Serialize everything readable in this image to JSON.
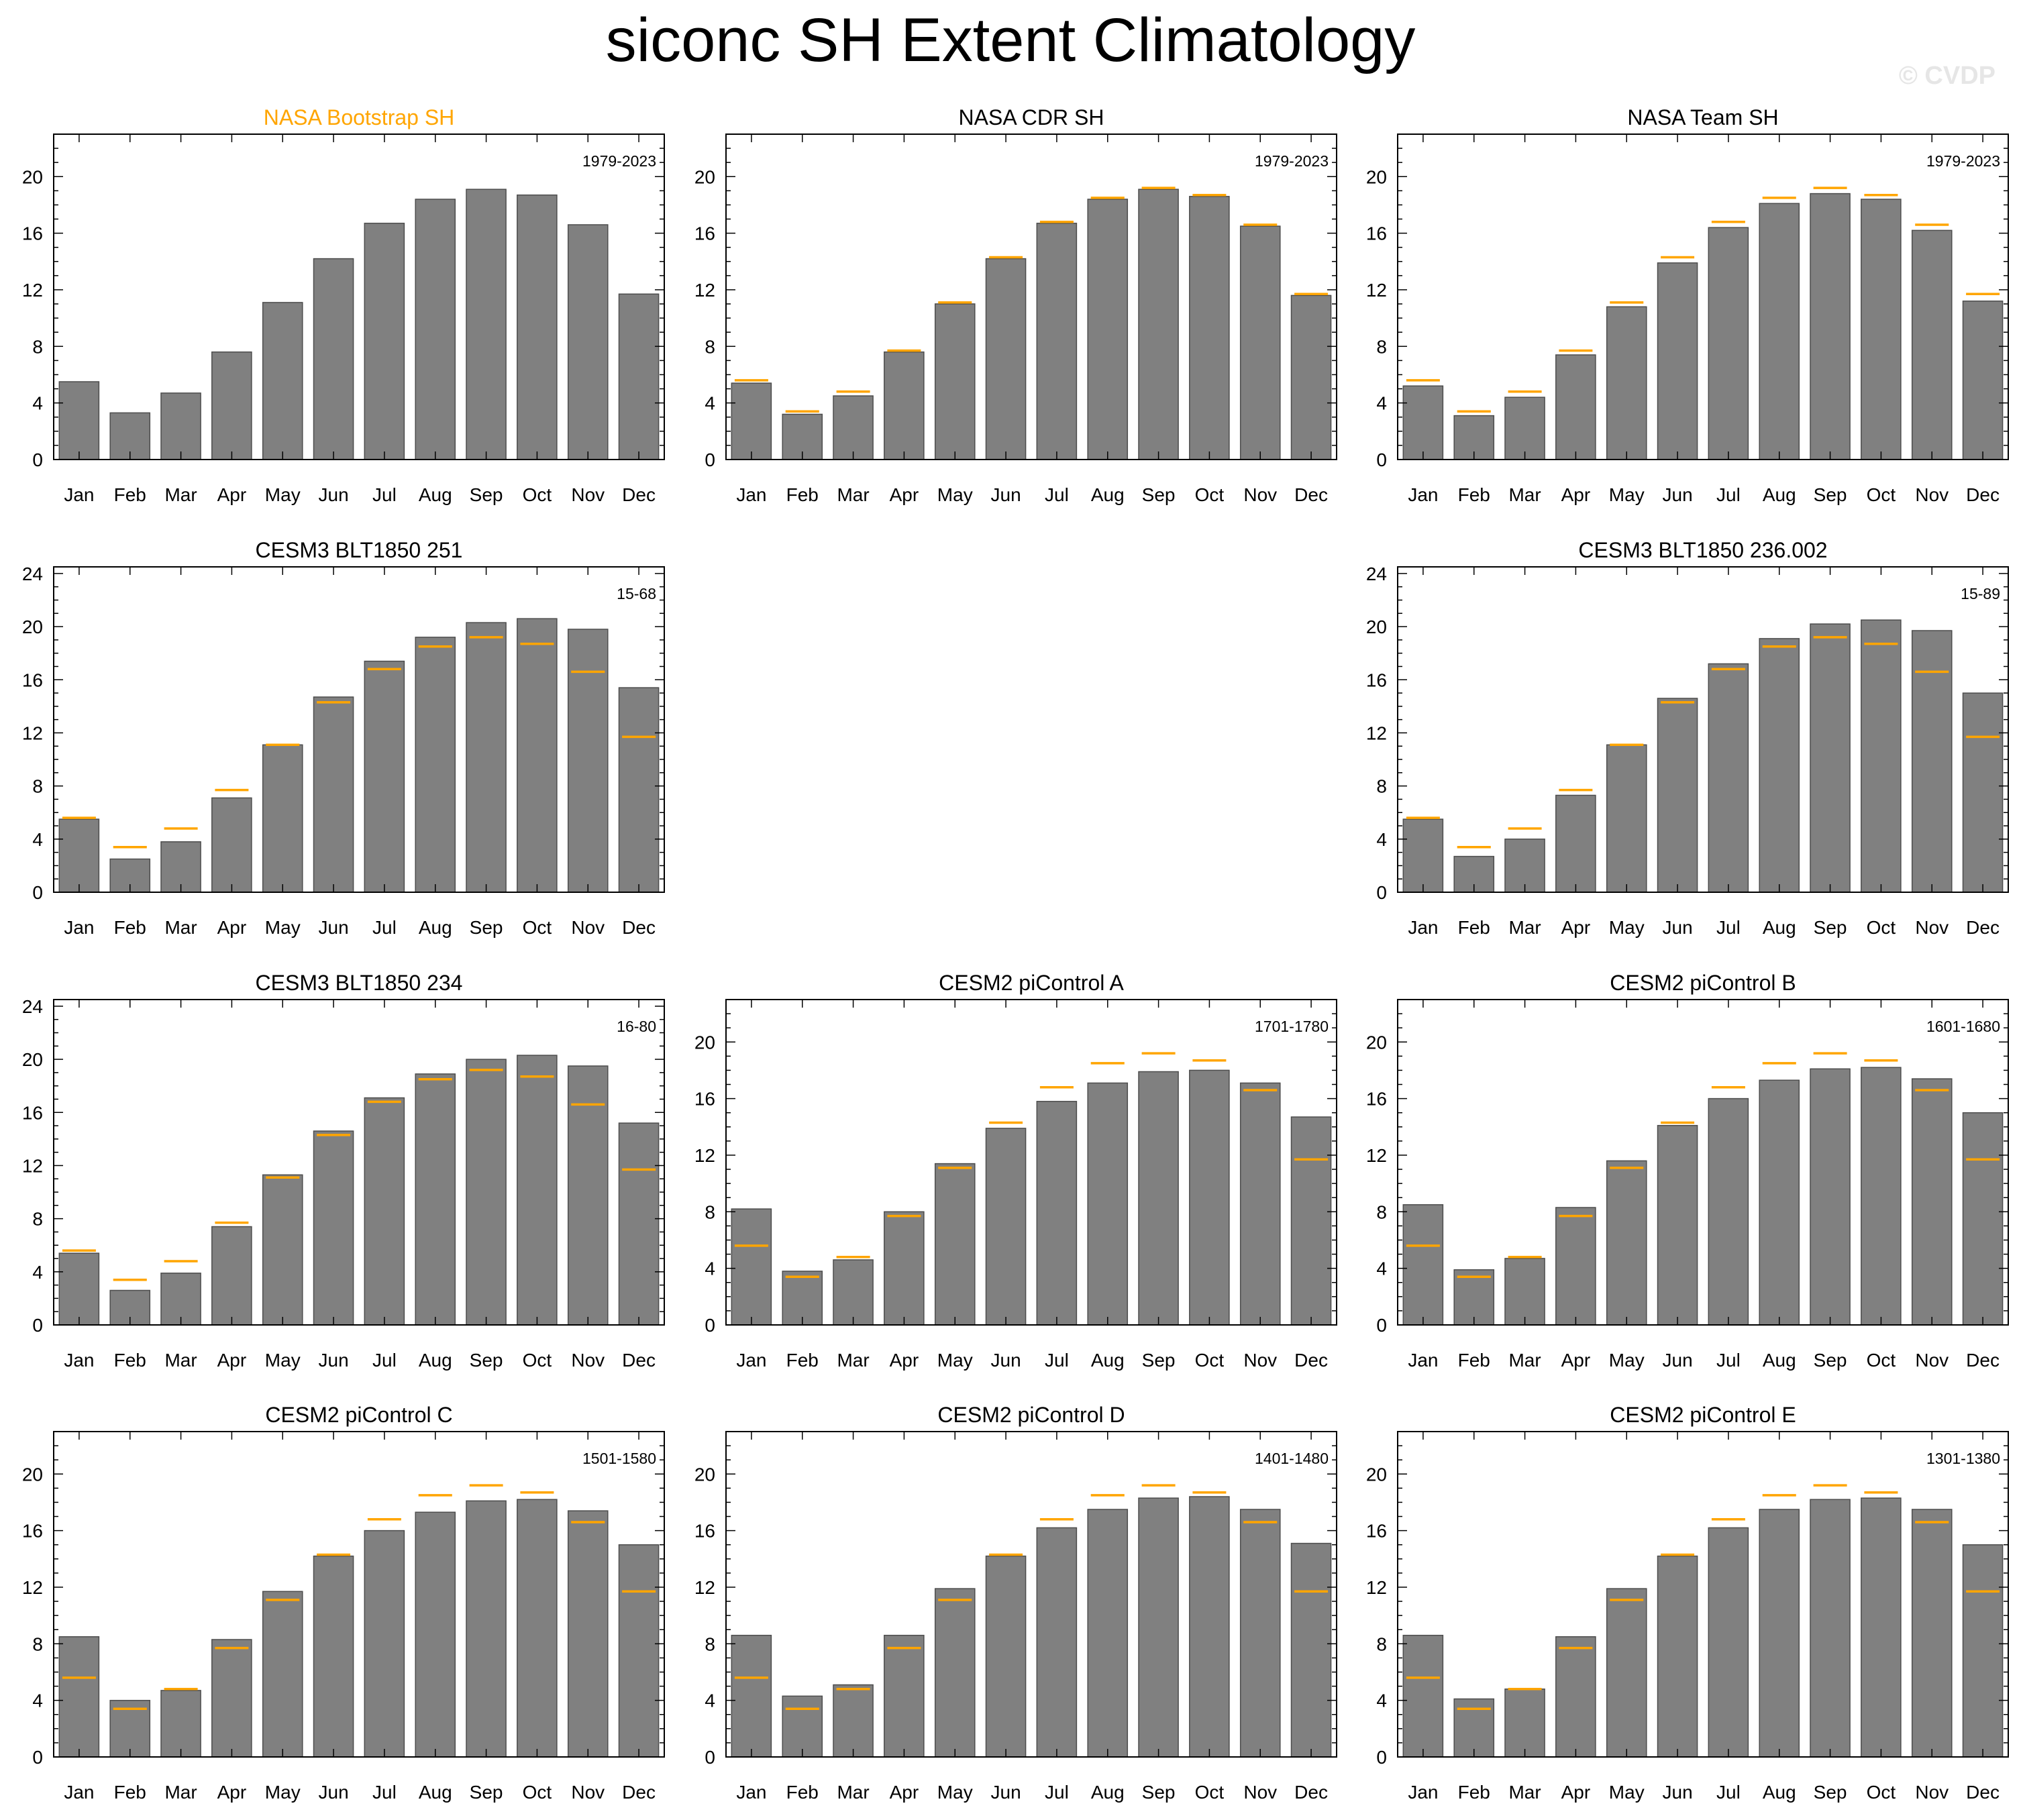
{
  "figure": {
    "title": "siconc SH Extent Climatology",
    "watermark": "© CVDP"
  },
  "colors": {
    "bar": "#808080",
    "bar_edge": "#4d4d4d",
    "obs_line": "#ffa500",
    "highlight_title": "#ffa500",
    "text": "#000000"
  },
  "chart_data": [
    {
      "type": "bar",
      "title": "NASA Bootstrap SH",
      "title_highlight": true,
      "period": "1979-2023",
      "categories": [
        "Jan",
        "Feb",
        "Mar",
        "Apr",
        "May",
        "Jun",
        "Jul",
        "Aug",
        "Sep",
        "Oct",
        "Nov",
        "Dec"
      ],
      "values": [
        5.5,
        3.3,
        4.7,
        7.6,
        11.1,
        14.2,
        16.7,
        18.4,
        19.1,
        18.7,
        16.6,
        11.7
      ],
      "ylim": [
        0,
        23
      ],
      "yticks": [
        0,
        4,
        8,
        12,
        16,
        20
      ],
      "show_reference": false
    },
    {
      "type": "bar",
      "title": "NASA CDR SH",
      "period": "1979-2023",
      "categories": [
        "Jan",
        "Feb",
        "Mar",
        "Apr",
        "May",
        "Jun",
        "Jul",
        "Aug",
        "Sep",
        "Oct",
        "Nov",
        "Dec"
      ],
      "values": [
        5.4,
        3.2,
        4.5,
        7.6,
        11.0,
        14.2,
        16.7,
        18.4,
        19.1,
        18.6,
        16.5,
        11.6
      ],
      "reference": [
        5.6,
        3.4,
        4.8,
        7.7,
        11.1,
        14.3,
        16.8,
        18.5,
        19.2,
        18.7,
        16.6,
        11.7
      ],
      "ylim": [
        0,
        23
      ],
      "yticks": [
        0,
        4,
        8,
        12,
        16,
        20
      ],
      "show_reference": true
    },
    {
      "type": "bar",
      "title": "NASA Team SH",
      "period": "1979-2023",
      "categories": [
        "Jan",
        "Feb",
        "Mar",
        "Apr",
        "May",
        "Jun",
        "Jul",
        "Aug",
        "Sep",
        "Oct",
        "Nov",
        "Dec"
      ],
      "values": [
        5.2,
        3.1,
        4.4,
        7.4,
        10.8,
        13.9,
        16.4,
        18.1,
        18.8,
        18.4,
        16.2,
        11.2
      ],
      "reference": [
        5.6,
        3.4,
        4.8,
        7.7,
        11.1,
        14.3,
        16.8,
        18.5,
        19.2,
        18.7,
        16.6,
        11.7
      ],
      "ylim": [
        0,
        23
      ],
      "yticks": [
        0,
        4,
        8,
        12,
        16,
        20
      ],
      "show_reference": true
    },
    {
      "type": "bar",
      "title": "CESM3 BLT1850 251",
      "period": "15-68",
      "categories": [
        "Jan",
        "Feb",
        "Mar",
        "Apr",
        "May",
        "Jun",
        "Jul",
        "Aug",
        "Sep",
        "Oct",
        "Nov",
        "Dec"
      ],
      "values": [
        5.5,
        2.5,
        3.8,
        7.1,
        11.1,
        14.7,
        17.4,
        19.2,
        20.3,
        20.6,
        19.8,
        15.4
      ],
      "reference": [
        5.6,
        3.4,
        4.8,
        7.7,
        11.1,
        14.3,
        16.8,
        18.5,
        19.2,
        18.7,
        16.6,
        11.7
      ],
      "ylim": [
        0,
        24.5
      ],
      "yticks": [
        0,
        4,
        8,
        12,
        16,
        20,
        24
      ],
      "show_reference": true
    },
    null,
    {
      "type": "bar",
      "title": "CESM3 BLT1850 236.002",
      "period": "15-89",
      "categories": [
        "Jan",
        "Feb",
        "Mar",
        "Apr",
        "May",
        "Jun",
        "Jul",
        "Aug",
        "Sep",
        "Oct",
        "Nov",
        "Dec"
      ],
      "values": [
        5.5,
        2.7,
        4.0,
        7.3,
        11.1,
        14.6,
        17.2,
        19.1,
        20.2,
        20.5,
        19.7,
        15.0
      ],
      "reference": [
        5.6,
        3.4,
        4.8,
        7.7,
        11.1,
        14.3,
        16.8,
        18.5,
        19.2,
        18.7,
        16.6,
        11.7
      ],
      "ylim": [
        0,
        24.5
      ],
      "yticks": [
        0,
        4,
        8,
        12,
        16,
        20,
        24
      ],
      "show_reference": true
    },
    {
      "type": "bar",
      "title": "CESM3 BLT1850 234",
      "period": "16-80",
      "categories": [
        "Jan",
        "Feb",
        "Mar",
        "Apr",
        "May",
        "Jun",
        "Jul",
        "Aug",
        "Sep",
        "Oct",
        "Nov",
        "Dec"
      ],
      "values": [
        5.4,
        2.6,
        3.9,
        7.4,
        11.3,
        14.6,
        17.1,
        18.9,
        20.0,
        20.3,
        19.5,
        15.2
      ],
      "reference": [
        5.6,
        3.4,
        4.8,
        7.7,
        11.1,
        14.3,
        16.8,
        18.5,
        19.2,
        18.7,
        16.6,
        11.7
      ],
      "ylim": [
        0,
        24.5
      ],
      "yticks": [
        0,
        4,
        8,
        12,
        16,
        20,
        24
      ],
      "show_reference": true
    },
    {
      "type": "bar",
      "title": "CESM2 piControl A",
      "period": "1701-1780",
      "categories": [
        "Jan",
        "Feb",
        "Mar",
        "Apr",
        "May",
        "Jun",
        "Jul",
        "Aug",
        "Sep",
        "Oct",
        "Nov",
        "Dec"
      ],
      "values": [
        8.2,
        3.8,
        4.6,
        8.0,
        11.4,
        13.9,
        15.8,
        17.1,
        17.9,
        18.0,
        17.1,
        14.7
      ],
      "reference": [
        5.6,
        3.4,
        4.8,
        7.7,
        11.1,
        14.3,
        16.8,
        18.5,
        19.2,
        18.7,
        16.6,
        11.7
      ],
      "ylim": [
        0,
        23
      ],
      "yticks": [
        0,
        4,
        8,
        12,
        16,
        20
      ],
      "show_reference": true
    },
    {
      "type": "bar",
      "title": "CESM2 piControl B",
      "period": "1601-1680",
      "categories": [
        "Jan",
        "Feb",
        "Mar",
        "Apr",
        "May",
        "Jun",
        "Jul",
        "Aug",
        "Sep",
        "Oct",
        "Nov",
        "Dec"
      ],
      "values": [
        8.5,
        3.9,
        4.7,
        8.3,
        11.6,
        14.1,
        16.0,
        17.3,
        18.1,
        18.2,
        17.4,
        15.0
      ],
      "reference": [
        5.6,
        3.4,
        4.8,
        7.7,
        11.1,
        14.3,
        16.8,
        18.5,
        19.2,
        18.7,
        16.6,
        11.7
      ],
      "ylim": [
        0,
        23
      ],
      "yticks": [
        0,
        4,
        8,
        12,
        16,
        20
      ],
      "show_reference": true
    },
    {
      "type": "bar",
      "title": "CESM2 piControl C",
      "period": "1501-1580",
      "categories": [
        "Jan",
        "Feb",
        "Mar",
        "Apr",
        "May",
        "Jun",
        "Jul",
        "Aug",
        "Sep",
        "Oct",
        "Nov",
        "Dec"
      ],
      "values": [
        8.5,
        4.0,
        4.7,
        8.3,
        11.7,
        14.2,
        16.0,
        17.3,
        18.1,
        18.2,
        17.4,
        15.0
      ],
      "reference": [
        5.6,
        3.4,
        4.8,
        7.7,
        11.1,
        14.3,
        16.8,
        18.5,
        19.2,
        18.7,
        16.6,
        11.7
      ],
      "ylim": [
        0,
        23
      ],
      "yticks": [
        0,
        4,
        8,
        12,
        16,
        20
      ],
      "show_reference": true
    },
    {
      "type": "bar",
      "title": "CESM2 piControl D",
      "period": "1401-1480",
      "categories": [
        "Jan",
        "Feb",
        "Mar",
        "Apr",
        "May",
        "Jun",
        "Jul",
        "Aug",
        "Sep",
        "Oct",
        "Nov",
        "Dec"
      ],
      "values": [
        8.6,
        4.3,
        5.1,
        8.6,
        11.9,
        14.2,
        16.2,
        17.5,
        18.3,
        18.4,
        17.5,
        15.1
      ],
      "reference": [
        5.6,
        3.4,
        4.8,
        7.7,
        11.1,
        14.3,
        16.8,
        18.5,
        19.2,
        18.7,
        16.6,
        11.7
      ],
      "ylim": [
        0,
        23
      ],
      "yticks": [
        0,
        4,
        8,
        12,
        16,
        20
      ],
      "show_reference": true
    },
    {
      "type": "bar",
      "title": "CESM2 piControl E",
      "period": "1301-1380",
      "categories": [
        "Jan",
        "Feb",
        "Mar",
        "Apr",
        "May",
        "Jun",
        "Jul",
        "Aug",
        "Sep",
        "Oct",
        "Nov",
        "Dec"
      ],
      "values": [
        8.6,
        4.1,
        4.8,
        8.5,
        11.9,
        14.2,
        16.2,
        17.5,
        18.2,
        18.3,
        17.5,
        15.0
      ],
      "reference": [
        5.6,
        3.4,
        4.8,
        7.7,
        11.1,
        14.3,
        16.8,
        18.5,
        19.2,
        18.7,
        16.6,
        11.7
      ],
      "ylim": [
        0,
        23
      ],
      "yticks": [
        0,
        4,
        8,
        12,
        16,
        20
      ],
      "show_reference": true
    }
  ]
}
